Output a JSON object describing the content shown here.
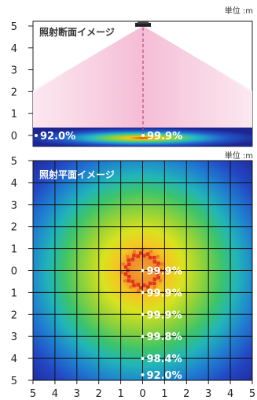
{
  "section_view": {
    "unit": "単位 :m",
    "title": "照射断面イメージ",
    "y_ticks": [
      "5",
      "4",
      "3",
      "2",
      "1",
      "0"
    ],
    "readings": [
      {
        "label": "92.0%"
      },
      {
        "label": "99.9%"
      }
    ],
    "colors": {
      "beam_center": "#f3b0ce",
      "beam_edge": "#fbe6ef",
      "floor_hot": "#e0301a",
      "floor_cool": "#1c2ca0"
    }
  },
  "plan_view": {
    "unit": "単位 :m",
    "title": "照射平面イメージ",
    "y_ticks": [
      "5",
      "4",
      "3",
      "2",
      "1",
      "0",
      "1",
      "2",
      "3",
      "4",
      "5"
    ],
    "x_ticks": [
      "5",
      "4",
      "3",
      "2",
      "1",
      "0",
      "1",
      "2",
      "3",
      "4",
      "5"
    ],
    "readings": [
      {
        "label": "99.9%",
        "y": 0
      },
      {
        "label": "99.9%",
        "y": 1
      },
      {
        "label": "99.9%",
        "y": 2
      },
      {
        "label": "99.8%",
        "y": 3
      },
      {
        "label": "98.4%",
        "y": 4
      },
      {
        "label": "92.0%",
        "y": 5
      }
    ],
    "colors": {
      "grid": "#111111",
      "label": "#ffffff"
    }
  }
}
